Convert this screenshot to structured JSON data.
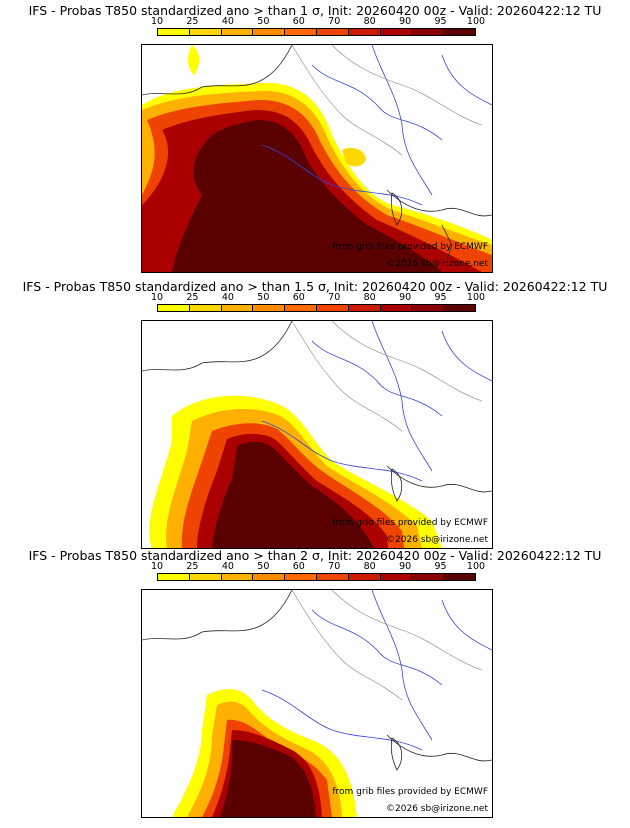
{
  "colorbar": {
    "labels": [
      "10",
      "25",
      "40",
      "50",
      "60",
      "70",
      "80",
      "90",
      "95",
      "100"
    ],
    "colors": [
      "#ffff00",
      "#ffd800",
      "#ffb000",
      "#ff8c00",
      "#ff6a00",
      "#ee4400",
      "#cc1a00",
      "#aa0000",
      "#880000",
      "#5a0000"
    ]
  },
  "credits": {
    "source": "from grib files provided by ECMWF",
    "copyright": "©2026 sb@irizone.net"
  },
  "panels": [
    {
      "title": "IFS - Probas T850  standardized ano > than 1 σ, Init: 20260420 00z - Valid: 20260422:12 TU"
    },
    {
      "title": "IFS - Probas T850  standardized ano > than 1.5 σ, Init: 20260420 00z - Valid: 20260422:12 TU"
    },
    {
      "title": "IFS - Probas T850  standardized ano > than 2 σ, Init: 20260420 00z - Valid: 20260422:12 TU"
    }
  ]
}
